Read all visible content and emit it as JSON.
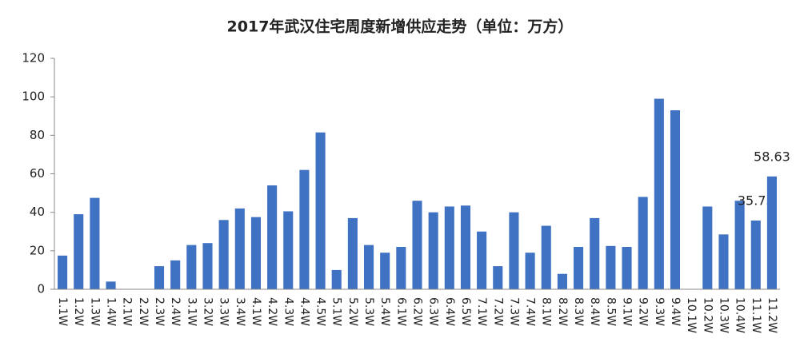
{
  "chart_data": {
    "type": "bar",
    "title": "2017年武汉住宅周度新增供应走势（单位：万方）",
    "categories": [
      "1.1W",
      "1.2W",
      "1.3W",
      "1.4W",
      "2.1W",
      "2.2W",
      "2.3W",
      "2.4W",
      "3.1W",
      "3.2W",
      "3.3W",
      "3.4W",
      "4.1W",
      "4.2W",
      "4.3W",
      "4.4W",
      "4.5W",
      "5.1W",
      "5.2W",
      "5.3W",
      "5.4W",
      "6.1W",
      "6.2W",
      "6.3W",
      "6.4W",
      "6.5W",
      "7.1W",
      "7.2W",
      "7.3W",
      "7.4W",
      "8.1W",
      "8.2W",
      "8.3W",
      "8.4W",
      "8.5W",
      "9.1W",
      "9.2W",
      "9.3W",
      "9.4W",
      "10.1W",
      "10.2W",
      "10.3W",
      "10.4W",
      "11.1W",
      "11.2W"
    ],
    "values": [
      17.5,
      39,
      47.5,
      4,
      0,
      0,
      12,
      15,
      23,
      24,
      36,
      42,
      37.5,
      54,
      40.5,
      62,
      81.5,
      10,
      37,
      23,
      19,
      22,
      46,
      40,
      43,
      43.5,
      30,
      12,
      40,
      19,
      33,
      8,
      22,
      37,
      22.5,
      22,
      48,
      99,
      93,
      0,
      43,
      28.5,
      46,
      35.73,
      58.63
    ],
    "value_labels": [
      null,
      null,
      null,
      null,
      null,
      null,
      null,
      null,
      null,
      null,
      null,
      null,
      null,
      null,
      null,
      null,
      null,
      null,
      null,
      null,
      null,
      null,
      null,
      null,
      null,
      null,
      null,
      null,
      null,
      null,
      null,
      null,
      null,
      null,
      null,
      null,
      null,
      null,
      null,
      null,
      null,
      null,
      null,
      "35.73",
      "58.63"
    ],
    "color": "#3f72c2",
    "ylim": [
      0,
      120
    ],
    "yticks": [
      0,
      20,
      40,
      60,
      80,
      100,
      120
    ],
    "grid": false
  }
}
